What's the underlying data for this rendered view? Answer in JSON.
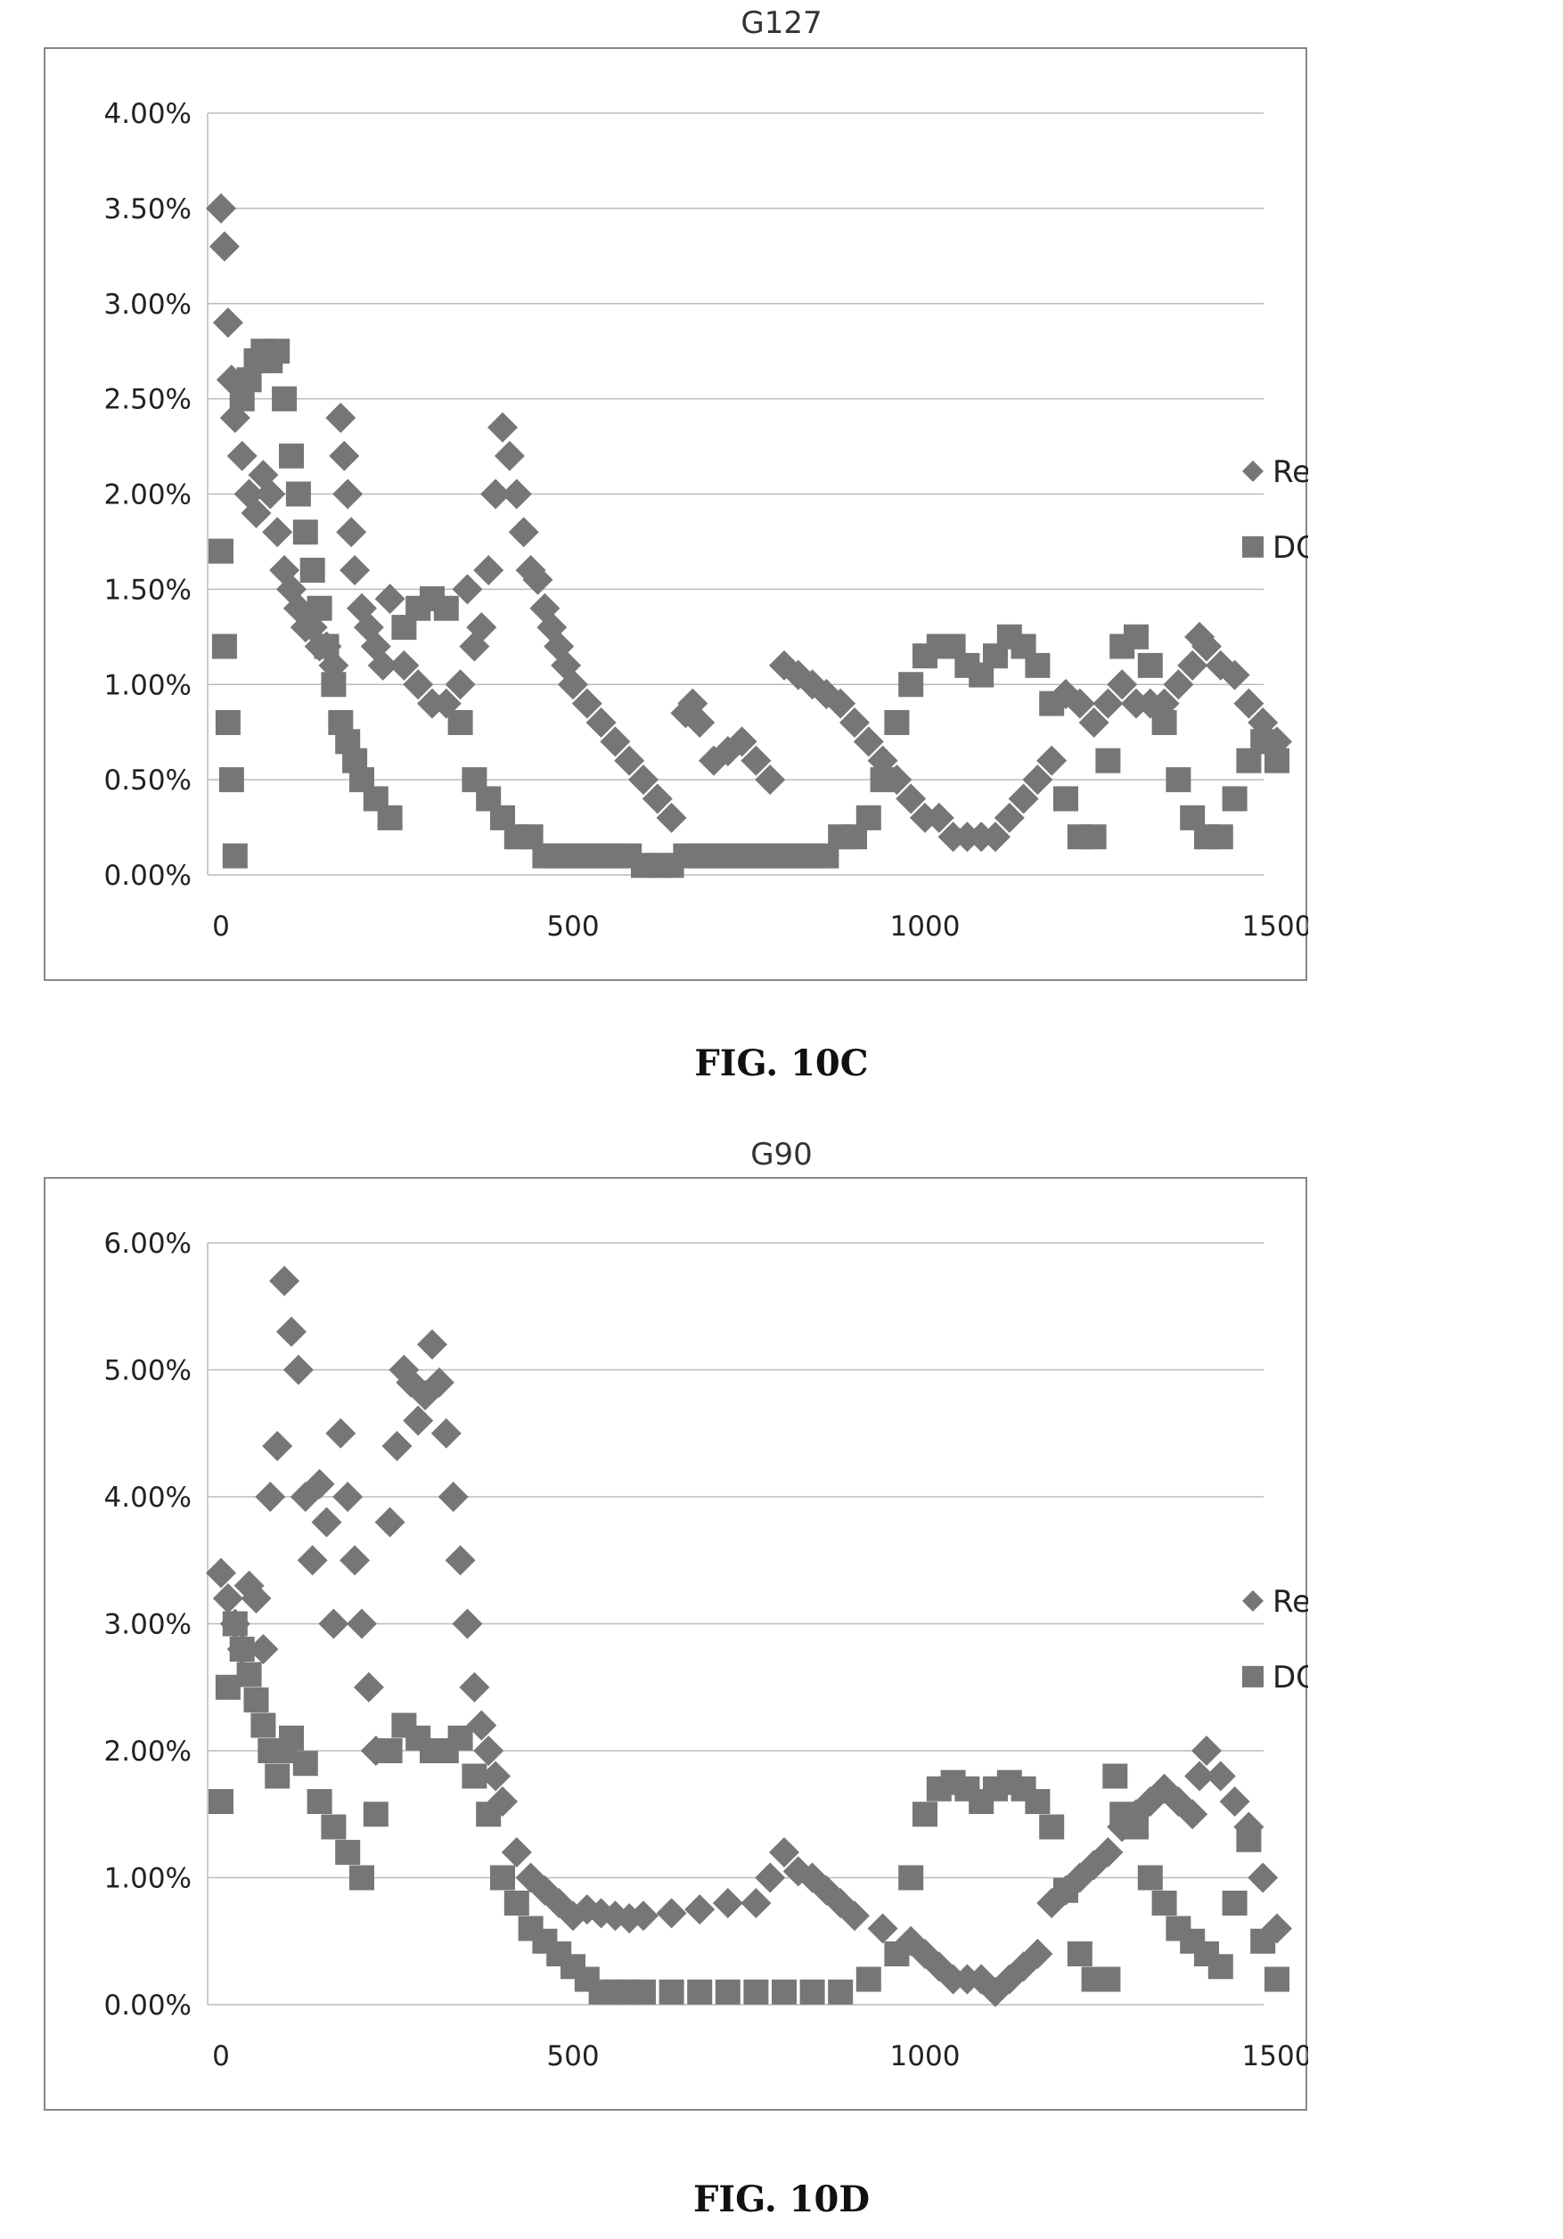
{
  "figures": [
    {
      "caption": "FIG. 10C"
    },
    {
      "caption": "FIG. 10D"
    }
  ],
  "colors": {
    "marker": "#767676",
    "grid": "#bbbbbb",
    "frame": "#888888",
    "text": "#222222"
  },
  "chart_data": [
    {
      "type": "scatter",
      "title": "G127",
      "xlim": [
        0,
        1500
      ],
      "ylim": [
        0,
        0.04
      ],
      "x_ticks": [
        {
          "value": 0,
          "label": "0"
        },
        {
          "value": 500,
          "label": "500"
        },
        {
          "value": 1000,
          "label": "1000"
        },
        {
          "value": 1500,
          "label": "1500"
        }
      ],
      "y_ticks": [
        {
          "value": 0.0,
          "label": "0.00%"
        },
        {
          "value": 0.005,
          "label": "0.50%"
        },
        {
          "value": 0.01,
          "label": "1.00%"
        },
        {
          "value": 0.015,
          "label": "1.50%"
        },
        {
          "value": 0.02,
          "label": "2.00%"
        },
        {
          "value": 0.025,
          "label": "2.50%"
        },
        {
          "value": 0.03,
          "label": "3.00%"
        },
        {
          "value": 0.035,
          "label": "3.50%"
        },
        {
          "value": 0.04,
          "label": "4.00%"
        }
      ],
      "grid": true,
      "legend": "right",
      "series": [
        {
          "name": "Ref.",
          "marker": "diamond",
          "x": [
            0,
            5,
            10,
            15,
            20,
            30,
            40,
            50,
            60,
            70,
            80,
            90,
            100,
            110,
            120,
            130,
            140,
            150,
            160,
            170,
            175,
            180,
            185,
            190,
            200,
            210,
            220,
            230,
            240,
            260,
            280,
            300,
            320,
            340,
            350,
            360,
            370,
            380,
            390,
            400,
            410,
            420,
            430,
            440,
            450,
            460,
            470,
            480,
            490,
            500,
            520,
            540,
            560,
            580,
            600,
            620,
            640,
            660,
            670,
            680,
            700,
            720,
            740,
            760,
            780,
            800,
            820,
            840,
            860,
            880,
            900,
            920,
            940,
            960,
            980,
            1000,
            1020,
            1040,
            1060,
            1080,
            1100,
            1120,
            1140,
            1160,
            1180,
            1200,
            1220,
            1240,
            1260,
            1280,
            1300,
            1320,
            1340,
            1360,
            1380,
            1390,
            1400,
            1420,
            1440,
            1460,
            1480,
            1500
          ],
          "y": [
            0.035,
            0.033,
            0.029,
            0.026,
            0.024,
            0.022,
            0.02,
            0.019,
            0.021,
            0.02,
            0.018,
            0.016,
            0.015,
            0.014,
            0.013,
            0.013,
            0.012,
            0.012,
            0.011,
            0.024,
            0.022,
            0.02,
            0.018,
            0.016,
            0.014,
            0.013,
            0.012,
            0.011,
            0.0145,
            0.011,
            0.01,
            0.009,
            0.009,
            0.01,
            0.015,
            0.012,
            0.013,
            0.016,
            0.02,
            0.0235,
            0.022,
            0.02,
            0.018,
            0.016,
            0.0155,
            0.014,
            0.013,
            0.012,
            0.011,
            0.01,
            0.009,
            0.008,
            0.007,
            0.006,
            0.005,
            0.004,
            0.003,
            0.0085,
            0.009,
            0.008,
            0.006,
            0.0065,
            0.007,
            0.006,
            0.005,
            0.011,
            0.0105,
            0.01,
            0.0095,
            0.009,
            0.008,
            0.007,
            0.006,
            0.005,
            0.004,
            0.003,
            0.003,
            0.002,
            0.002,
            0.002,
            0.002,
            0.003,
            0.004,
            0.005,
            0.006,
            0.0095,
            0.009,
            0.008,
            0.009,
            0.01,
            0.009,
            0.009,
            0.009,
            0.01,
            0.011,
            0.0125,
            0.012,
            0.011,
            0.0105,
            0.009,
            0.008,
            0.007
          ]
        },
        {
          "name": "DOE",
          "marker": "square",
          "x": [
            0,
            5,
            10,
            15,
            20,
            30,
            40,
            50,
            60,
            70,
            80,
            90,
            100,
            110,
            120,
            130,
            140,
            150,
            160,
            170,
            180,
            190,
            200,
            220,
            240,
            260,
            280,
            300,
            320,
            340,
            360,
            380,
            400,
            420,
            440,
            460,
            480,
            500,
            520,
            540,
            560,
            580,
            600,
            620,
            640,
            660,
            680,
            700,
            720,
            740,
            760,
            780,
            800,
            820,
            840,
            860,
            880,
            900,
            920,
            940,
            960,
            980,
            1000,
            1020,
            1040,
            1060,
            1080,
            1100,
            1120,
            1140,
            1160,
            1180,
            1200,
            1220,
            1240,
            1260,
            1280,
            1300,
            1320,
            1340,
            1360,
            1380,
            1400,
            1420,
            1440,
            1460,
            1480,
            1500
          ],
          "y": [
            0.017,
            0.012,
            0.008,
            0.005,
            0.001,
            0.025,
            0.026,
            0.027,
            0.0275,
            0.027,
            0.0275,
            0.025,
            0.022,
            0.02,
            0.018,
            0.016,
            0.014,
            0.012,
            0.01,
            0.008,
            0.007,
            0.006,
            0.005,
            0.004,
            0.003,
            0.013,
            0.014,
            0.0145,
            0.014,
            0.008,
            0.005,
            0.004,
            0.003,
            0.002,
            0.002,
            0.001,
            0.001,
            0.001,
            0.001,
            0.001,
            0.001,
            0.001,
            0.0005,
            0.0005,
            0.0005,
            0.001,
            0.001,
            0.001,
            0.001,
            0.001,
            0.001,
            0.001,
            0.001,
            0.001,
            0.001,
            0.001,
            0.002,
            0.002,
            0.003,
            0.005,
            0.008,
            0.01,
            0.0115,
            0.012,
            0.012,
            0.011,
            0.0105,
            0.0115,
            0.0125,
            0.012,
            0.011,
            0.009,
            0.004,
            0.002,
            0.002,
            0.006,
            0.012,
            0.0125,
            0.011,
            0.008,
            0.005,
            0.003,
            0.002,
            0.002,
            0.004,
            0.006,
            0.007,
            0.006
          ]
        }
      ]
    },
    {
      "type": "scatter",
      "title": "G90",
      "xlim": [
        0,
        1500
      ],
      "ylim": [
        0,
        0.06
      ],
      "x_ticks": [
        {
          "value": 0,
          "label": "0"
        },
        {
          "value": 500,
          "label": "500"
        },
        {
          "value": 1000,
          "label": "1000"
        },
        {
          "value": 1500,
          "label": "1500"
        }
      ],
      "y_ticks": [
        {
          "value": 0.0,
          "label": "0.00%"
        },
        {
          "value": 0.01,
          "label": "1.00%"
        },
        {
          "value": 0.02,
          "label": "2.00%"
        },
        {
          "value": 0.03,
          "label": "3.00%"
        },
        {
          "value": 0.04,
          "label": "4.00%"
        },
        {
          "value": 0.05,
          "label": "5.00%"
        },
        {
          "value": 0.06,
          "label": "6.00%"
        }
      ],
      "grid": true,
      "legend": "right",
      "series": [
        {
          "name": "Ref.",
          "marker": "diamond",
          "x": [
            0,
            10,
            20,
            30,
            40,
            50,
            60,
            70,
            80,
            90,
            100,
            110,
            120,
            130,
            140,
            150,
            160,
            170,
            180,
            190,
            200,
            210,
            220,
            240,
            250,
            260,
            270,
            280,
            290,
            300,
            310,
            320,
            330,
            340,
            350,
            360,
            370,
            380,
            390,
            400,
            420,
            440,
            460,
            480,
            500,
            520,
            540,
            560,
            580,
            600,
            640,
            680,
            720,
            760,
            780,
            800,
            820,
            840,
            860,
            880,
            900,
            940,
            980,
            1000,
            1020,
            1040,
            1060,
            1080,
            1100,
            1120,
            1140,
            1160,
            1180,
            1200,
            1220,
            1240,
            1260,
            1280,
            1300,
            1320,
            1340,
            1360,
            1380,
            1390,
            1400,
            1420,
            1440,
            1460,
            1480,
            1500
          ],
          "y": [
            0.034,
            0.032,
            0.03,
            0.028,
            0.033,
            0.032,
            0.028,
            0.04,
            0.044,
            0.057,
            0.053,
            0.05,
            0.04,
            0.035,
            0.041,
            0.038,
            0.03,
            0.045,
            0.04,
            0.035,
            0.03,
            0.025,
            0.02,
            0.038,
            0.044,
            0.05,
            0.049,
            0.046,
            0.048,
            0.052,
            0.049,
            0.045,
            0.04,
            0.035,
            0.03,
            0.025,
            0.022,
            0.02,
            0.018,
            0.016,
            0.012,
            0.01,
            0.009,
            0.008,
            0.007,
            0.0075,
            0.0072,
            0.007,
            0.0068,
            0.007,
            0.0072,
            0.0075,
            0.008,
            0.008,
            0.01,
            0.012,
            0.0105,
            0.01,
            0.009,
            0.008,
            0.007,
            0.006,
            0.005,
            0.004,
            0.003,
            0.002,
            0.002,
            0.002,
            0.001,
            0.002,
            0.003,
            0.004,
            0.008,
            0.009,
            0.01,
            0.011,
            0.012,
            0.014,
            0.015,
            0.016,
            0.017,
            0.016,
            0.015,
            0.018,
            0.02,
            0.018,
            0.016,
            0.014,
            0.01,
            0.006
          ]
        },
        {
          "name": "DOE",
          "marker": "square",
          "x": [
            0,
            10,
            20,
            30,
            40,
            50,
            60,
            70,
            80,
            90,
            100,
            120,
            140,
            160,
            180,
            200,
            220,
            240,
            260,
            280,
            300,
            320,
            340,
            360,
            380,
            400,
            420,
            440,
            460,
            480,
            500,
            520,
            540,
            560,
            580,
            600,
            640,
            680,
            720,
            760,
            800,
            840,
            880,
            920,
            960,
            980,
            1000,
            1020,
            1040,
            1060,
            1080,
            1100,
            1120,
            1140,
            1160,
            1180,
            1200,
            1220,
            1240,
            1260,
            1270,
            1280,
            1300,
            1320,
            1340,
            1360,
            1380,
            1400,
            1420,
            1440,
            1460,
            1480,
            1500
          ],
          "y": [
            0.016,
            0.025,
            0.03,
            0.028,
            0.026,
            0.024,
            0.022,
            0.02,
            0.018,
            0.02,
            0.021,
            0.019,
            0.016,
            0.014,
            0.012,
            0.01,
            0.015,
            0.02,
            0.022,
            0.021,
            0.02,
            0.02,
            0.021,
            0.018,
            0.015,
            0.01,
            0.008,
            0.006,
            0.005,
            0.004,
            0.003,
            0.002,
            0.001,
            0.001,
            0.001,
            0.001,
            0.001,
            0.001,
            0.001,
            0.001,
            0.001,
            0.001,
            0.001,
            0.002,
            0.004,
            0.01,
            0.015,
            0.017,
            0.0175,
            0.017,
            0.016,
            0.017,
            0.0175,
            0.017,
            0.016,
            0.014,
            0.009,
            0.004,
            0.002,
            0.002,
            0.018,
            0.015,
            0.014,
            0.01,
            0.008,
            0.006,
            0.005,
            0.004,
            0.003,
            0.008,
            0.013,
            0.005,
            0.002
          ]
        }
      ]
    }
  ]
}
